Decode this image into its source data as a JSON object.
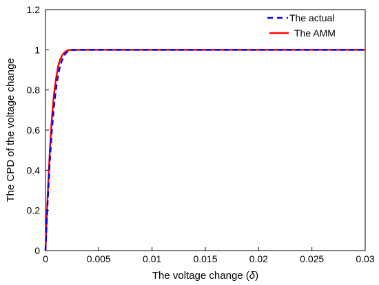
{
  "chart_data": {
    "type": "line",
    "xlabel": "The voltage change (",
    "xlabel_symbol": "δ",
    "xlabel_suffix": ")",
    "ylabel": "The CPD of the voltage change",
    "xlim": [
      0,
      0.03
    ],
    "ylim": [
      0,
      1.2
    ],
    "x_ticks": [
      0,
      0.005,
      0.01,
      0.015,
      0.02,
      0.025,
      0.03
    ],
    "x_tick_labels": [
      "0",
      "0.005",
      "0.01",
      "0.015",
      "0.02",
      "0.025",
      "0.03"
    ],
    "y_ticks": [
      0,
      0.2,
      0.4,
      0.6,
      0.8,
      1,
      1.2
    ],
    "y_tick_labels": [
      "0",
      "0.2",
      "0.4",
      "0.6",
      "0.8",
      "1",
      "1.2"
    ],
    "grid": false,
    "legend_position": "top-right",
    "series": [
      {
        "name": "The actual",
        "color": "#0000ff",
        "style": "dashed",
        "x": [
          0,
          0.0002,
          0.0004,
          0.0006,
          0.0008,
          0.001,
          0.0012,
          0.0014,
          0.0016,
          0.0018,
          0.002,
          0.0022,
          0.0025,
          0.003,
          0.005,
          0.01,
          0.015,
          0.02,
          0.025,
          0.03
        ],
        "y": [
          0,
          0.24,
          0.44,
          0.6,
          0.72,
          0.81,
          0.88,
          0.925,
          0.955,
          0.975,
          0.988,
          0.995,
          0.999,
          1,
          1,
          1,
          1,
          1,
          1,
          1
        ]
      },
      {
        "name": "The AMM",
        "color": "#ff0000",
        "style": "solid",
        "x": [
          0,
          0.0002,
          0.0004,
          0.0006,
          0.0008,
          0.001,
          0.0012,
          0.0014,
          0.0016,
          0.0018,
          0.002,
          0.0022,
          0.003,
          0.005,
          0.01,
          0.015,
          0.02,
          0.025,
          0.03
        ],
        "y": [
          0,
          0.27,
          0.49,
          0.66,
          0.78,
          0.86,
          0.92,
          0.955,
          0.975,
          0.988,
          0.995,
          0.999,
          1,
          1,
          1,
          1,
          1,
          1,
          1
        ]
      }
    ]
  }
}
